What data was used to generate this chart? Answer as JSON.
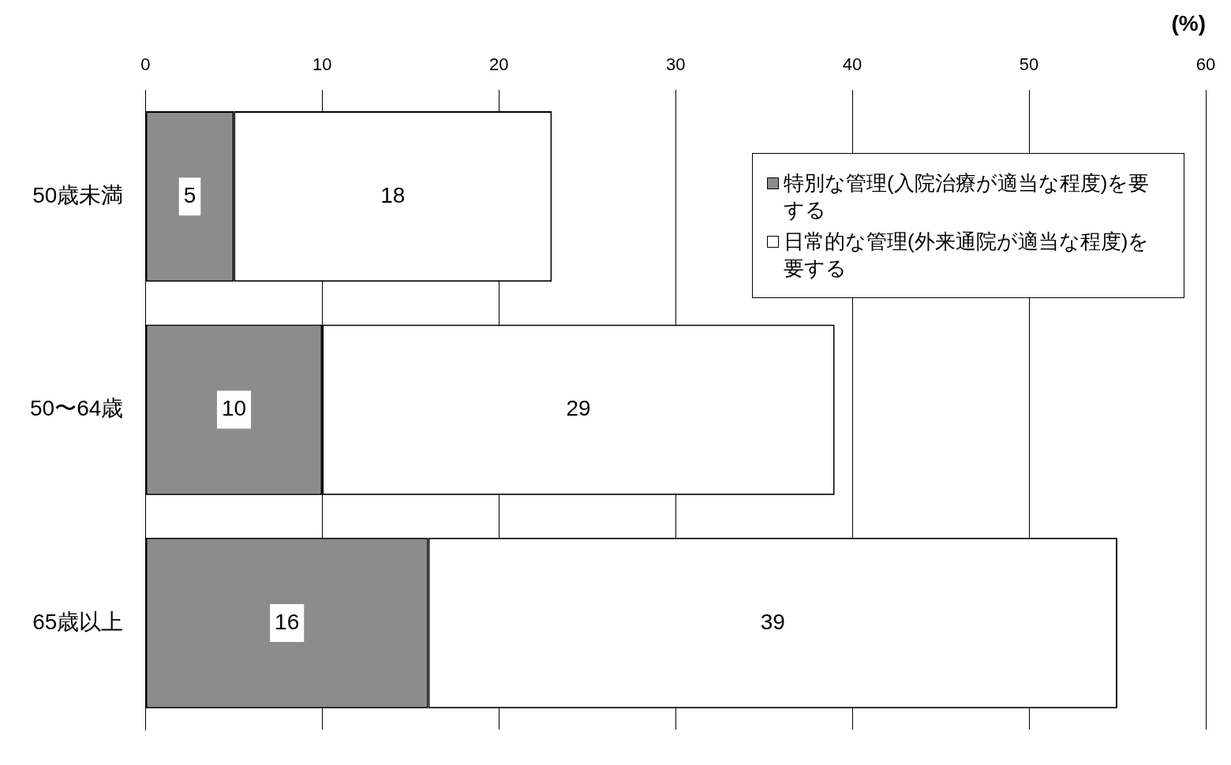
{
  "chart_data": {
    "type": "bar",
    "orientation": "horizontal",
    "stacked": true,
    "xlabel": "(%)",
    "categories": [
      "50歳未満",
      "50〜64歳",
      "65歳以上"
    ],
    "series": [
      {
        "name": "特別な管理(入院治療が適当な程度)を要する",
        "color": "#8c8c8c",
        "values": [
          5,
          10,
          16
        ]
      },
      {
        "name": "日常的な管理(外来通院が適当な程度)を要する",
        "color": "#ffffff",
        "values": [
          18,
          29,
          39
        ]
      }
    ],
    "xlim": [
      0,
      60
    ],
    "xticks": [
      0,
      10,
      20,
      30,
      40,
      50,
      60
    ],
    "grid": "x",
    "legend": "top right",
    "data_labels": true
  }
}
